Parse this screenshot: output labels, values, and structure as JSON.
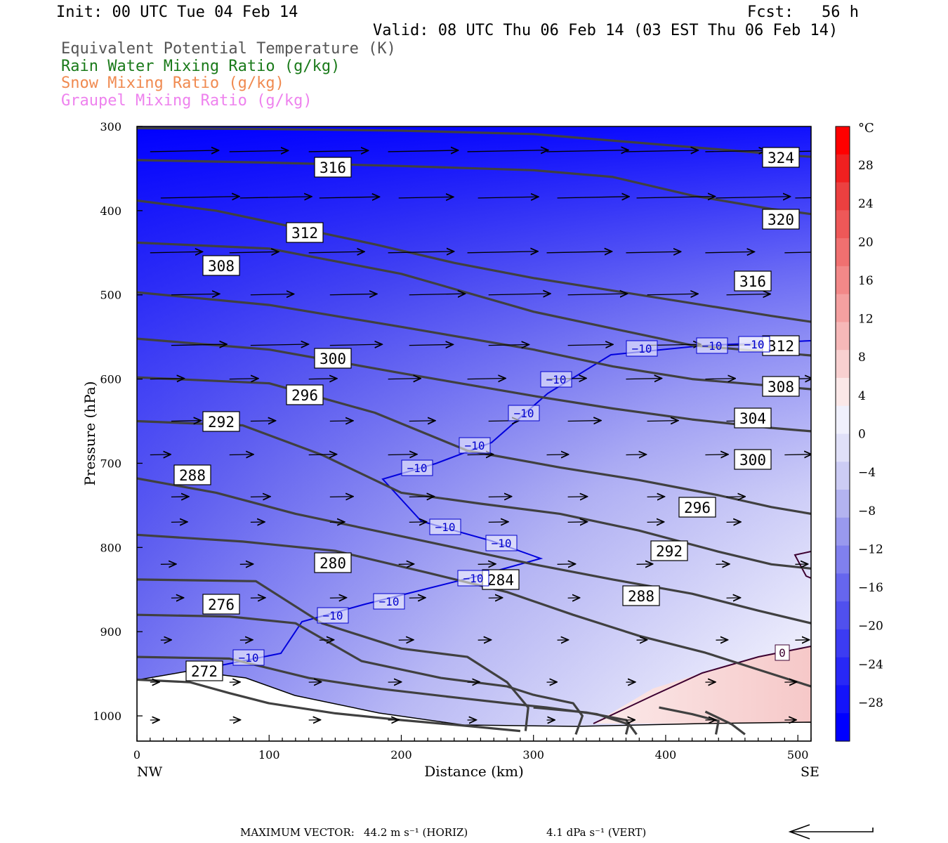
{
  "header": {
    "init": "Init: 00 UTC Tue 04 Feb 14",
    "fcst": "Fcst:   56 h",
    "valid": "Valid: 08 UTC Thu 06 Feb 14 (03 EST Thu 06 Feb 14)",
    "legend": [
      {
        "label": "Equivalent Potential Temperature (K)",
        "color": "#555555"
      },
      {
        "label": "Rain Water Mixing Ratio (g/kg)",
        "color": "#1a7a1a"
      },
      {
        "label": "Snow Mixing Ratio (g/kg)",
        "color": "#f08a50"
      },
      {
        "label": "Graupel Mixing Ratio (g/kg)",
        "color": "#ee82ee"
      }
    ]
  },
  "footer": {
    "max_vector_label": "MAXIMUM VECTOR:",
    "horiz": "44.2 m s⁻¹ (HORIZ)",
    "vert": "4.1 dPa s⁻¹ (VERT)"
  },
  "chart_data": {
    "type": "cross-section",
    "xlabel": "Distance (km)",
    "ylabel": "Pressure (hPa)",
    "xlim": [
      0,
      510
    ],
    "ylim": [
      1030,
      300
    ],
    "x_ticks": [
      0,
      100,
      200,
      300,
      400,
      500
    ],
    "y_ticks": [
      300,
      400,
      500,
      600,
      700,
      800,
      900,
      1000
    ],
    "x_end_labels": {
      "left": "NW",
      "right": "SE"
    },
    "colorbar": {
      "unit": "°C",
      "levels": [
        -28,
        -24,
        -20,
        -16,
        -12,
        -8,
        -4,
        0,
        4,
        8,
        12,
        16,
        20,
        24,
        28
      ],
      "colors": [
        "#0000ff",
        "#1414fa",
        "#2828f6",
        "#3c3cf2",
        "#5050ee",
        "#6666ee",
        "#8080ee",
        "#9999ee",
        "#b3b3f0",
        "#ccccf4",
        "#e0e0f8",
        "#f0f0fc",
        "#fbe8e8",
        "#f8d0d0",
        "#f6b8b8",
        "#f4a0a0",
        "#f28888",
        "#f07070",
        "#ee5858",
        "#ec4040",
        "#f02020",
        "#ff0000"
      ]
    },
    "isentrope_labels": [
      324,
      320,
      316,
      316,
      312,
      312,
      308,
      308,
      304,
      300,
      300,
      296,
      296,
      292,
      292,
      288,
      288,
      284,
      280,
      276,
      272
    ],
    "isotherm_labels": [
      "-10",
      "-10",
      "-10",
      "-10",
      "-10",
      "-10",
      "-10",
      "-10",
      "-10",
      "-10",
      "-10",
      "-10",
      "-10",
      "-10"
    ],
    "zero_label": "0"
  }
}
